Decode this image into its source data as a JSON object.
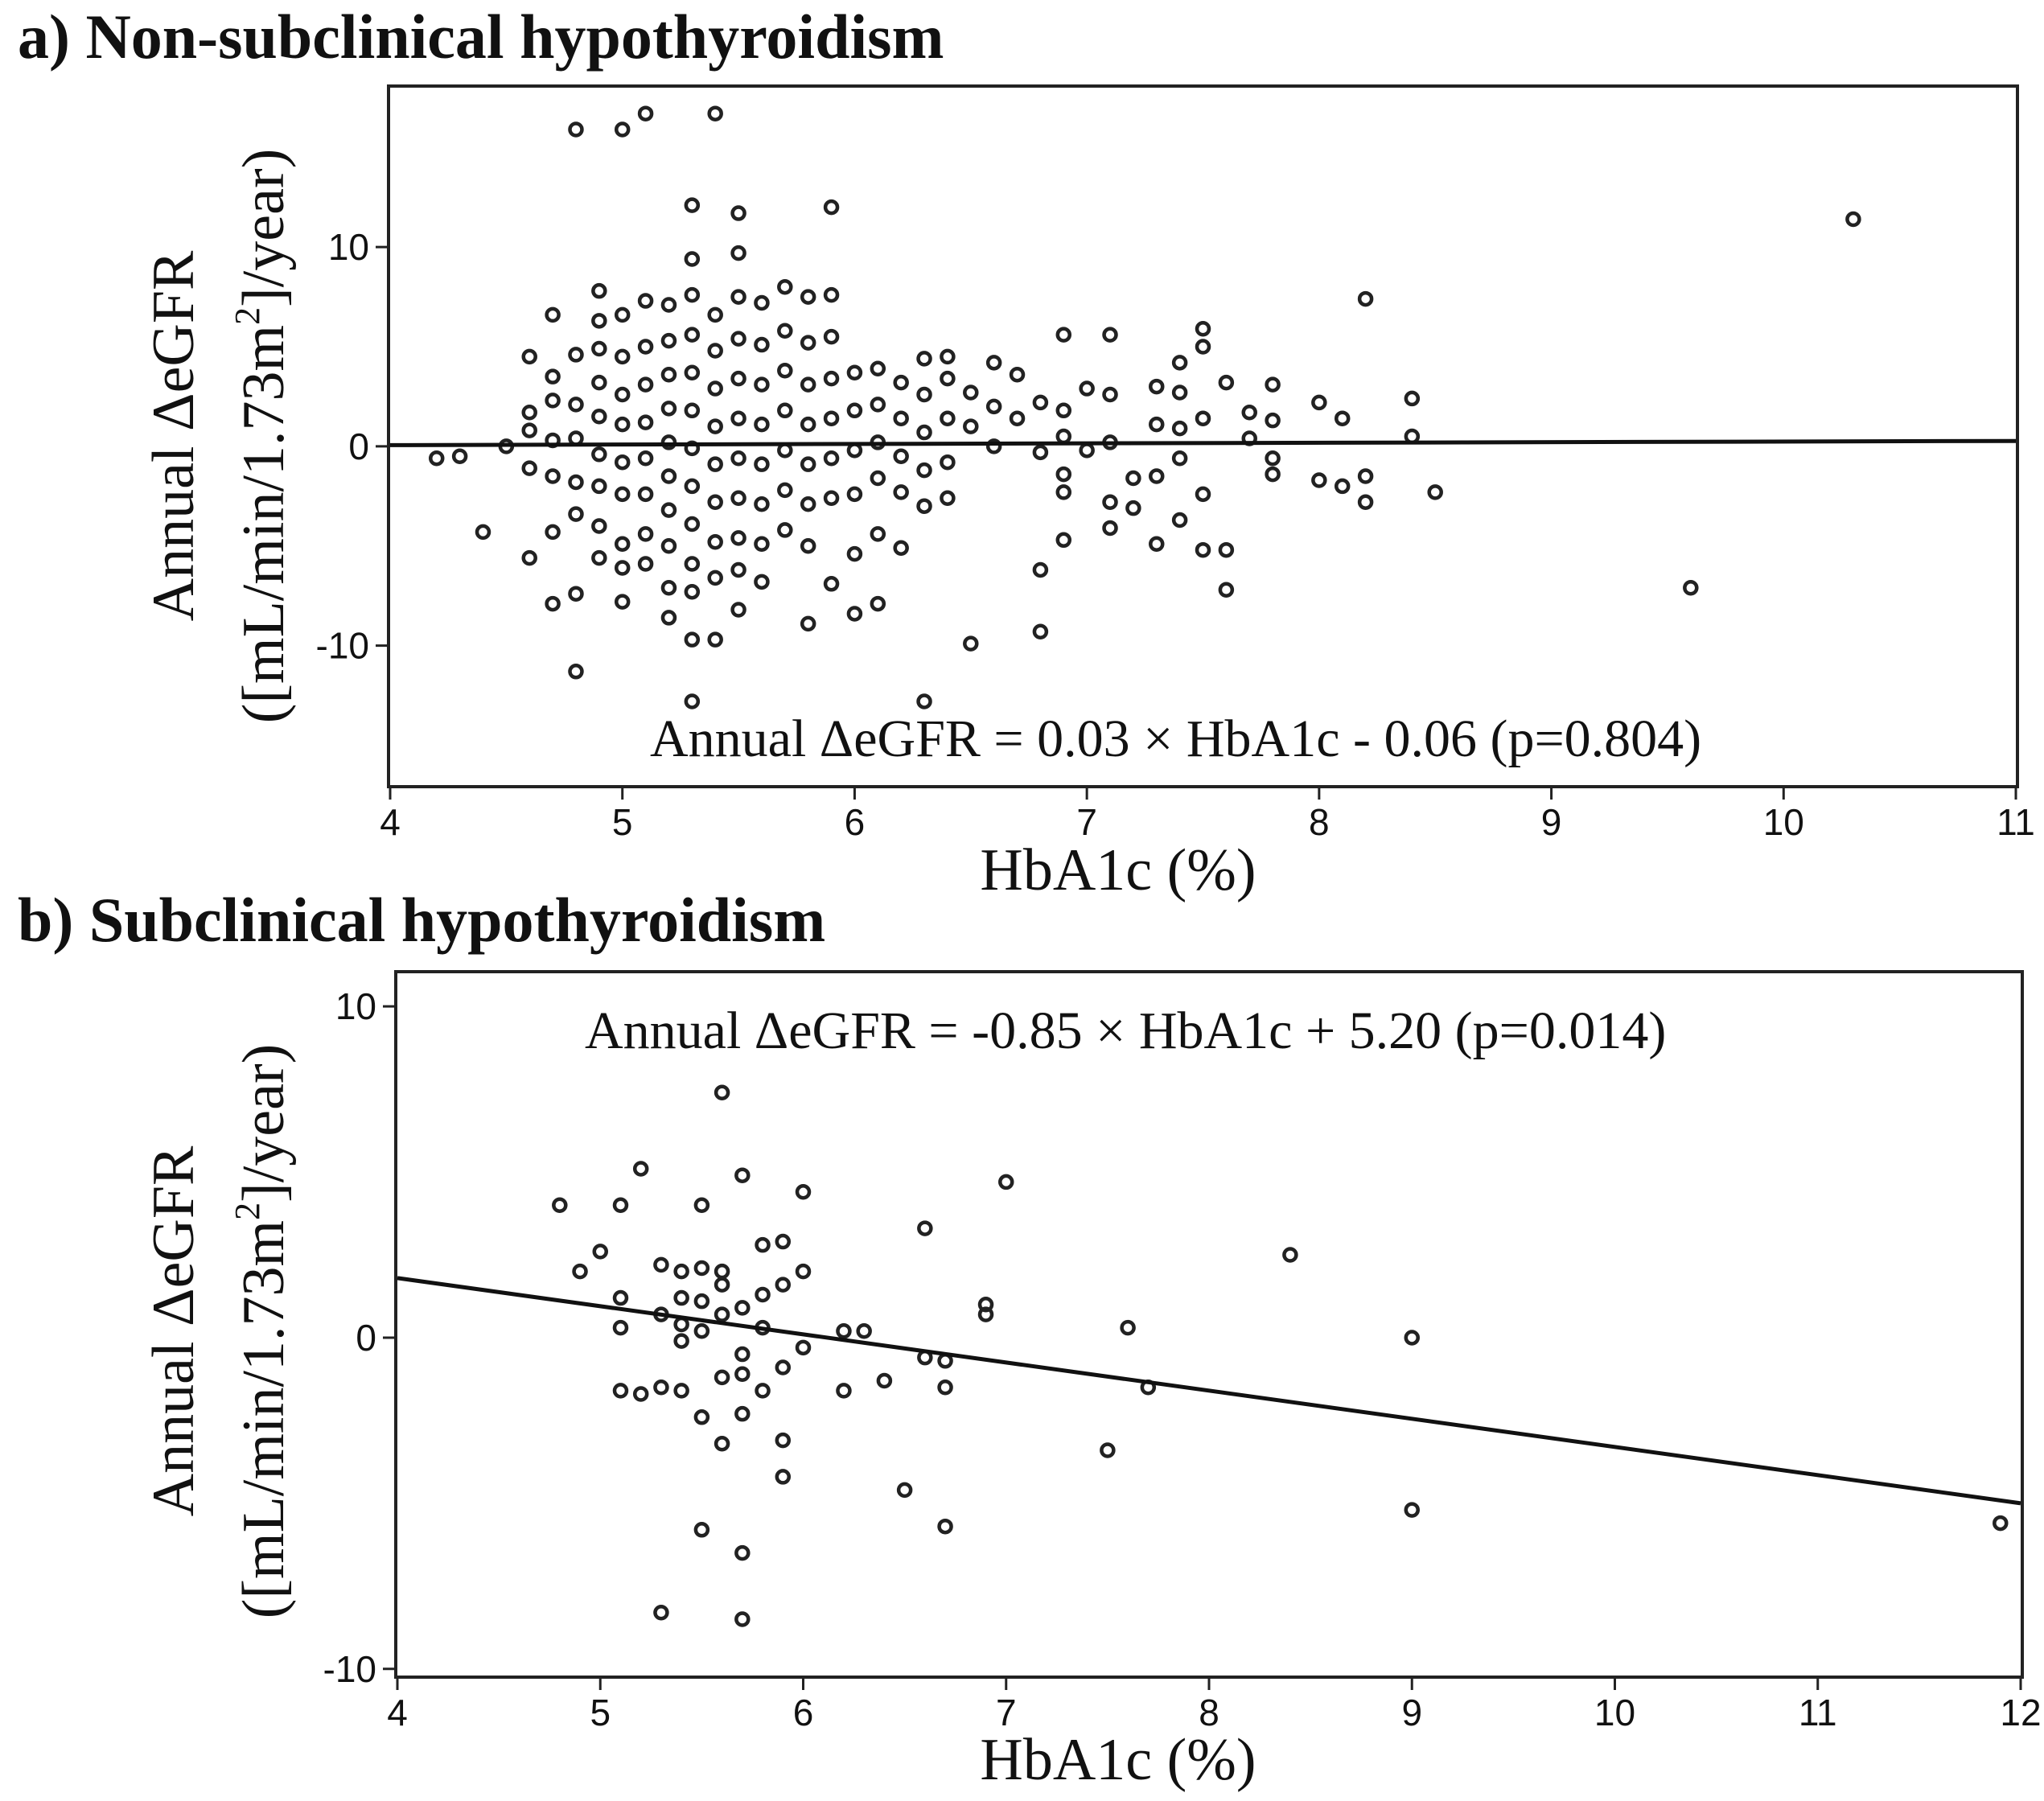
{
  "chart_data": [
    {
      "type": "scatter",
      "panel_label": "a) Non-subclinical hypothyroidism",
      "xlabel": "HbA1c (%)",
      "ylabel_line1": "Annual  ΔeGFR",
      "ylabel_line2_pre": "([mL/min/1.73m",
      "ylabel_line2_sup": "2",
      "ylabel_line2_post": "]/year)",
      "xlim": [
        4,
        11
      ],
      "ylim": [
        -17,
        18
      ],
      "xticks": [
        4,
        5,
        6,
        7,
        8,
        9,
        10,
        11
      ],
      "yticks": [
        -10,
        0,
        10
      ],
      "regression": {
        "slope": 0.03,
        "intercept": -0.06,
        "p": 0.804
      },
      "equation_text": "Annual  ΔeGFR = 0.03 × HbA1c - 0.06 (p=0.804)",
      "points": [
        [
          4.2,
          -0.6
        ],
        [
          4.3,
          -0.5
        ],
        [
          4.4,
          -4.3
        ],
        [
          4.5,
          0.0
        ],
        [
          4.6,
          4.5
        ],
        [
          4.6,
          1.7
        ],
        [
          4.6,
          0.8
        ],
        [
          4.6,
          -1.1
        ],
        [
          4.6,
          -5.6
        ],
        [
          4.7,
          6.6
        ],
        [
          4.7,
          3.5
        ],
        [
          4.7,
          2.3
        ],
        [
          4.7,
          0.3
        ],
        [
          4.7,
          -1.5
        ],
        [
          4.7,
          -4.3
        ],
        [
          4.7,
          -7.9
        ],
        [
          4.8,
          15.9
        ],
        [
          4.8,
          4.6
        ],
        [
          4.8,
          2.1
        ],
        [
          4.8,
          0.4
        ],
        [
          4.8,
          -1.8
        ],
        [
          4.8,
          -3.4
        ],
        [
          4.8,
          -7.4
        ],
        [
          4.8,
          -11.3
        ],
        [
          4.9,
          7.8
        ],
        [
          4.9,
          6.3
        ],
        [
          4.9,
          4.9
        ],
        [
          4.9,
          3.2
        ],
        [
          4.9,
          1.5
        ],
        [
          4.9,
          -0.4
        ],
        [
          4.9,
          -2.0
        ],
        [
          4.9,
          -4.0
        ],
        [
          4.9,
          -5.6
        ],
        [
          5.0,
          15.9
        ],
        [
          5.0,
          6.6
        ],
        [
          5.0,
          4.5
        ],
        [
          5.0,
          2.6
        ],
        [
          5.0,
          1.1
        ],
        [
          5.0,
          -0.8
        ],
        [
          5.0,
          -2.4
        ],
        [
          5.0,
          -4.9
        ],
        [
          5.0,
          -6.1
        ],
        [
          5.0,
          -7.8
        ],
        [
          5.1,
          16.7
        ],
        [
          5.1,
          7.3
        ],
        [
          5.1,
          5.0
        ],
        [
          5.1,
          3.1
        ],
        [
          5.1,
          1.2
        ],
        [
          5.1,
          -0.6
        ],
        [
          5.1,
          -2.4
        ],
        [
          5.1,
          -4.4
        ],
        [
          5.1,
          -5.9
        ],
        [
          5.2,
          7.1
        ],
        [
          5.2,
          5.3
        ],
        [
          5.2,
          3.6
        ],
        [
          5.2,
          1.9
        ],
        [
          5.2,
          0.2
        ],
        [
          5.2,
          -1.5
        ],
        [
          5.2,
          -3.2
        ],
        [
          5.2,
          -5.0
        ],
        [
          5.2,
          -7.1
        ],
        [
          5.2,
          -8.6
        ],
        [
          5.3,
          12.1
        ],
        [
          5.3,
          9.4
        ],
        [
          5.3,
          7.6
        ],
        [
          5.3,
          5.6
        ],
        [
          5.3,
          3.7
        ],
        [
          5.3,
          1.8
        ],
        [
          5.3,
          -0.1
        ],
        [
          5.3,
          -2.0
        ],
        [
          5.3,
          -3.9
        ],
        [
          5.3,
          -5.9
        ],
        [
          5.3,
          -7.3
        ],
        [
          5.3,
          -9.7
        ],
        [
          5.3,
          -12.8
        ],
        [
          5.4,
          16.7
        ],
        [
          5.4,
          6.6
        ],
        [
          5.4,
          4.8
        ],
        [
          5.4,
          2.9
        ],
        [
          5.4,
          1.0
        ],
        [
          5.4,
          -0.9
        ],
        [
          5.4,
          -2.8
        ],
        [
          5.4,
          -4.8
        ],
        [
          5.4,
          -6.6
        ],
        [
          5.4,
          -9.7
        ],
        [
          5.5,
          11.7
        ],
        [
          5.5,
          9.7
        ],
        [
          5.5,
          7.5
        ],
        [
          5.5,
          5.4
        ],
        [
          5.5,
          3.4
        ],
        [
          5.5,
          1.4
        ],
        [
          5.5,
          -0.6
        ],
        [
          5.5,
          -2.6
        ],
        [
          5.5,
          -4.6
        ],
        [
          5.5,
          -6.2
        ],
        [
          5.5,
          -8.2
        ],
        [
          5.6,
          7.2
        ],
        [
          5.6,
          5.1
        ],
        [
          5.6,
          3.1
        ],
        [
          5.6,
          1.1
        ],
        [
          5.6,
          -0.9
        ],
        [
          5.6,
          -2.9
        ],
        [
          5.6,
          -4.9
        ],
        [
          5.6,
          -6.8
        ],
        [
          5.7,
          8.0
        ],
        [
          5.7,
          5.8
        ],
        [
          5.7,
          3.8
        ],
        [
          5.7,
          1.8
        ],
        [
          5.7,
          -0.2
        ],
        [
          5.7,
          -2.2
        ],
        [
          5.7,
          -4.2
        ],
        [
          5.8,
          7.5
        ],
        [
          5.8,
          5.2
        ],
        [
          5.8,
          3.1
        ],
        [
          5.8,
          1.1
        ],
        [
          5.8,
          -0.9
        ],
        [
          5.8,
          -2.9
        ],
        [
          5.8,
          -5.0
        ],
        [
          5.8,
          -8.9
        ],
        [
          5.9,
          12.0
        ],
        [
          5.9,
          7.6
        ],
        [
          5.9,
          5.5
        ],
        [
          5.9,
          3.4
        ],
        [
          5.9,
          1.4
        ],
        [
          5.9,
          -0.6
        ],
        [
          5.9,
          -2.6
        ],
        [
          5.9,
          -6.9
        ],
        [
          6.0,
          3.7
        ],
        [
          6.0,
          1.8
        ],
        [
          6.0,
          -0.2
        ],
        [
          6.0,
          -2.4
        ],
        [
          6.0,
          -5.4
        ],
        [
          6.0,
          -8.4
        ],
        [
          6.1,
          3.9
        ],
        [
          6.1,
          2.1
        ],
        [
          6.1,
          0.2
        ],
        [
          6.1,
          -1.6
        ],
        [
          6.1,
          -4.4
        ],
        [
          6.1,
          -7.9
        ],
        [
          6.2,
          3.2
        ],
        [
          6.2,
          1.4
        ],
        [
          6.2,
          -0.5
        ],
        [
          6.2,
          -2.3
        ],
        [
          6.2,
          -5.1
        ],
        [
          6.3,
          4.4
        ],
        [
          6.3,
          2.6
        ],
        [
          6.3,
          0.7
        ],
        [
          6.3,
          -1.2
        ],
        [
          6.3,
          -3.0
        ],
        [
          6.3,
          -12.8
        ],
        [
          6.4,
          4.5
        ],
        [
          6.4,
          3.4
        ],
        [
          6.4,
          1.4
        ],
        [
          6.4,
          -0.8
        ],
        [
          6.4,
          -2.6
        ],
        [
          6.5,
          2.7
        ],
        [
          6.5,
          1.0
        ],
        [
          6.5,
          -9.9
        ],
        [
          6.6,
          4.2
        ],
        [
          6.6,
          2.0
        ],
        [
          6.6,
          0.0
        ],
        [
          6.7,
          3.6
        ],
        [
          6.7,
          1.4
        ],
        [
          6.8,
          2.2
        ],
        [
          6.8,
          -0.3
        ],
        [
          6.8,
          -6.2
        ],
        [
          6.8,
          -9.3
        ],
        [
          6.9,
          5.6
        ],
        [
          6.9,
          1.8
        ],
        [
          6.9,
          0.5
        ],
        [
          6.9,
          -1.4
        ],
        [
          6.9,
          -2.3
        ],
        [
          6.9,
          -4.7
        ],
        [
          7.0,
          2.9
        ],
        [
          7.0,
          -0.2
        ],
        [
          7.1,
          5.6
        ],
        [
          7.1,
          2.6
        ],
        [
          7.1,
          0.2
        ],
        [
          7.1,
          -2.8
        ],
        [
          7.1,
          -4.1
        ],
        [
          7.2,
          -1.6
        ],
        [
          7.2,
          -3.1
        ],
        [
          7.3,
          3.0
        ],
        [
          7.3,
          1.1
        ],
        [
          7.3,
          -1.5
        ],
        [
          7.3,
          -4.9
        ],
        [
          7.4,
          4.2
        ],
        [
          7.4,
          2.7
        ],
        [
          7.4,
          0.9
        ],
        [
          7.4,
          -0.6
        ],
        [
          7.4,
          -3.7
        ],
        [
          7.5,
          5.9
        ],
        [
          7.5,
          5.0
        ],
        [
          7.5,
          1.4
        ],
        [
          7.5,
          -2.4
        ],
        [
          7.5,
          -5.2
        ],
        [
          7.6,
          3.2
        ],
        [
          7.6,
          -5.2
        ],
        [
          7.6,
          -7.2
        ],
        [
          7.7,
          1.7
        ],
        [
          7.7,
          0.4
        ],
        [
          7.8,
          3.1
        ],
        [
          7.8,
          1.3
        ],
        [
          7.8,
          -0.6
        ],
        [
          7.8,
          -1.4
        ],
        [
          8.0,
          2.2
        ],
        [
          8.0,
          -1.7
        ],
        [
          8.1,
          1.4
        ],
        [
          8.1,
          -2.0
        ],
        [
          8.2,
          7.4
        ],
        [
          8.2,
          -1.5
        ],
        [
          8.2,
          -2.8
        ],
        [
          8.4,
          2.4
        ],
        [
          8.4,
          0.5
        ],
        [
          8.5,
          -2.3
        ],
        [
          9.6,
          -7.1
        ],
        [
          10.3,
          11.4
        ]
      ]
    },
    {
      "type": "scatter",
      "panel_label": "b) Subclinical hypothyroidism",
      "xlabel": "HbA1c (%)",
      "ylabel_line1": "Annual  ΔeGFR",
      "ylabel_line2_pre": "([mL/min/1.73m",
      "ylabel_line2_sup": "2",
      "ylabel_line2_post": "]/year)",
      "xlim": [
        4,
        12
      ],
      "ylim": [
        -10.2,
        11
      ],
      "xticks": [
        4,
        5,
        6,
        7,
        8,
        9,
        10,
        11,
        12
      ],
      "yticks": [
        -10,
        0,
        10
      ],
      "regression": {
        "slope": -0.85,
        "intercept": 5.2,
        "p": 0.014
      },
      "equation_text": "Annual ΔeGFR = -0.85 × HbA1c + 5.20 (p=0.014)",
      "points": [
        [
          4.8,
          4.0
        ],
        [
          4.9,
          2.0
        ],
        [
          5.0,
          2.6
        ],
        [
          5.1,
          4.0
        ],
        [
          5.1,
          1.2
        ],
        [
          5.1,
          0.3
        ],
        [
          5.1,
          -1.6
        ],
        [
          5.2,
          5.1
        ],
        [
          5.2,
          -1.7
        ],
        [
          5.3,
          2.2
        ],
        [
          5.3,
          0.7
        ],
        [
          5.3,
          -1.5
        ],
        [
          5.3,
          -8.3
        ],
        [
          5.4,
          2.0
        ],
        [
          5.4,
          1.2
        ],
        [
          5.4,
          0.4
        ],
        [
          5.4,
          -0.1
        ],
        [
          5.4,
          -1.6
        ],
        [
          5.5,
          4.0
        ],
        [
          5.5,
          2.1
        ],
        [
          5.5,
          1.1
        ],
        [
          5.5,
          0.2
        ],
        [
          5.5,
          -2.4
        ],
        [
          5.5,
          -5.8
        ],
        [
          5.6,
          7.4
        ],
        [
          5.6,
          2.0
        ],
        [
          5.6,
          1.6
        ],
        [
          5.6,
          0.7
        ],
        [
          5.6,
          -1.2
        ],
        [
          5.6,
          -3.2
        ],
        [
          5.7,
          4.9
        ],
        [
          5.7,
          0.9
        ],
        [
          5.7,
          -0.5
        ],
        [
          5.7,
          -1.1
        ],
        [
          5.7,
          -2.3
        ],
        [
          5.7,
          -6.5
        ],
        [
          5.7,
          -8.5
        ],
        [
          5.8,
          2.8
        ],
        [
          5.8,
          1.3
        ],
        [
          5.8,
          0.3
        ],
        [
          5.8,
          -1.6
        ],
        [
          5.9,
          2.9
        ],
        [
          5.9,
          1.6
        ],
        [
          5.9,
          -0.9
        ],
        [
          5.9,
          -3.1
        ],
        [
          5.9,
          -4.2
        ],
        [
          6.0,
          4.4
        ],
        [
          6.0,
          2.0
        ],
        [
          6.0,
          -0.3
        ],
        [
          6.2,
          0.2
        ],
        [
          6.2,
          -1.6
        ],
        [
          6.3,
          0.2
        ],
        [
          6.4,
          -1.3
        ],
        [
          6.5,
          -4.6
        ],
        [
          6.6,
          3.3
        ],
        [
          6.6,
          -0.6
        ],
        [
          6.7,
          -0.7
        ],
        [
          6.7,
          -1.5
        ],
        [
          6.7,
          -5.7
        ],
        [
          6.9,
          1.0
        ],
        [
          6.9,
          0.7
        ],
        [
          7.0,
          4.7
        ],
        [
          7.5,
          -3.4
        ],
        [
          7.6,
          0.3
        ],
        [
          7.7,
          -1.5
        ],
        [
          8.4,
          2.5
        ],
        [
          9.0,
          0.0
        ],
        [
          9.0,
          -5.2
        ],
        [
          11.9,
          -5.6
        ]
      ]
    }
  ]
}
